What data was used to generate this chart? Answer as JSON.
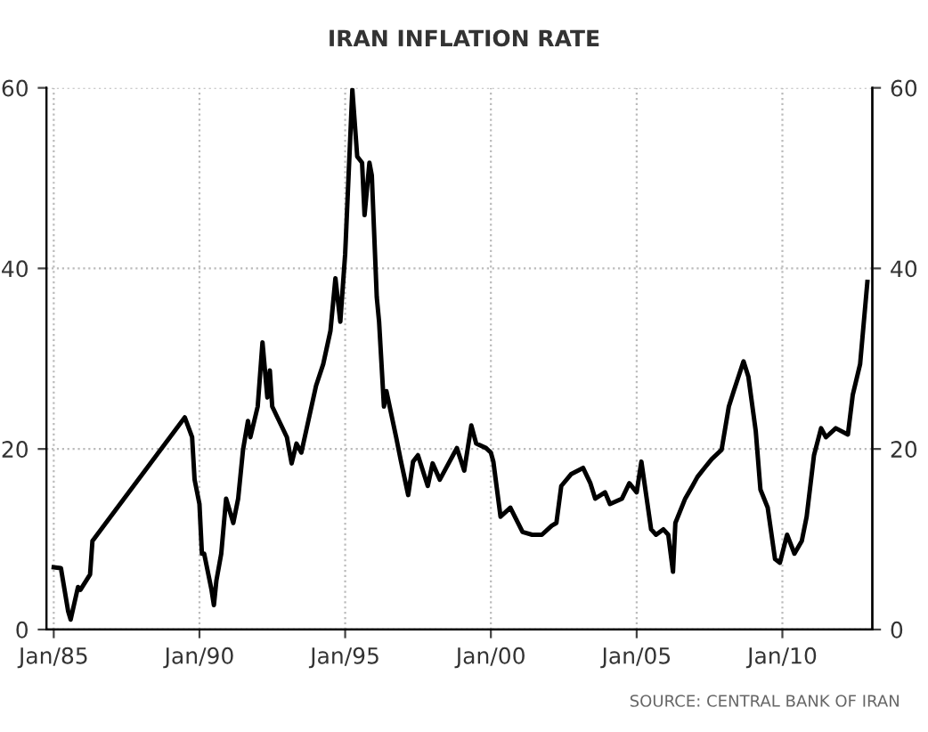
{
  "chart_data": {
    "type": "line",
    "title": "IRAN INFLATION RATE",
    "annotations": [
      "SOURCE: CENTRAL BANK OF IRAN"
    ],
    "x": [
      "1985-01",
      "1985-04",
      "1985-07",
      "1985-08",
      "1985-11",
      "1985-12",
      "1986-04",
      "1986-05",
      "1989-07",
      "1989-10",
      "1989-11",
      "1990-01",
      "1990-02",
      "1990-03",
      "1990-06",
      "1990-07",
      "1990-08",
      "1990-10",
      "1990-12",
      "1991-03",
      "1991-05",
      "1991-07",
      "1991-09",
      "1991-10",
      "1992-01",
      "1992-03",
      "1992-05",
      "1992-06",
      "1992-07",
      "1993-01",
      "1993-03",
      "1993-05",
      "1993-07",
      "1993-10",
      "1994-01",
      "1994-04",
      "1994-07",
      "1994-09",
      "1994-11",
      "1995-01",
      "1995-04",
      "1995-06",
      "1995-08",
      "1995-09",
      "1995-11",
      "1995-12",
      "1996-02",
      "1996-03",
      "1996-05",
      "1996-06",
      "1996-10",
      "1996-12",
      "1997-03",
      "1997-05",
      "1997-07",
      "1997-11",
      "1998-01",
      "1998-04",
      "1998-08",
      "1998-11",
      "1999-02",
      "1999-05",
      "1999-07",
      "1999-11",
      "2000-01",
      "2000-02",
      "2000-05",
      "2000-09",
      "2001-02",
      "2001-06",
      "2001-10",
      "2002-02",
      "2002-04",
      "2002-06",
      "2002-10",
      "2003-03",
      "2003-06",
      "2003-08",
      "2003-12",
      "2004-02",
      "2004-07",
      "2004-10",
      "2005-01",
      "2005-03",
      "2005-07",
      "2005-09",
      "2005-12",
      "2006-02",
      "2006-04",
      "2006-05",
      "2006-09",
      "2006-12",
      "2007-02",
      "2007-05",
      "2007-08",
      "2007-12",
      "2008-03",
      "2008-05",
      "2008-09",
      "2008-11",
      "2009-02",
      "2009-04",
      "2009-07",
      "2009-10",
      "2009-12",
      "2010-03",
      "2010-06",
      "2010-09",
      "2010-11",
      "2011-02",
      "2011-05",
      "2011-07",
      "2011-11",
      "2012-04",
      "2012-06",
      "2012-09",
      "2012-12"
    ],
    "series": [
      {
        "color": "#000000",
        "values": [
          6.9,
          6.8,
          2.0,
          1.1,
          4.7,
          4.4,
          6.1,
          9.8,
          23.5,
          21.3,
          16.6,
          13.9,
          8.4,
          8.4,
          4.4,
          2.7,
          5.4,
          8.4,
          14.5,
          11.8,
          14.5,
          19.9,
          23.1,
          21.3,
          24.7,
          31.8,
          25.7,
          28.7,
          24.7,
          21.3,
          18.4,
          20.6,
          19.6,
          23.3,
          27.0,
          29.4,
          33.1,
          38.9,
          34.1,
          41.6,
          59.8,
          52.4,
          51.7,
          45.9,
          51.7,
          50.3,
          36.8,
          34.1,
          24.7,
          26.4,
          21.3,
          18.6,
          14.9,
          18.6,
          19.3,
          15.9,
          18.4,
          16.6,
          18.6,
          20.1,
          17.6,
          22.6,
          20.6,
          20.1,
          19.6,
          18.6,
          12.5,
          13.5,
          10.8,
          10.5,
          10.5,
          11.5,
          11.8,
          15.9,
          17.2,
          17.9,
          16.2,
          14.5,
          15.2,
          13.9,
          14.5,
          16.2,
          15.2,
          18.6,
          11.1,
          10.5,
          11.1,
          10.5,
          6.4,
          11.8,
          14.5,
          15.9,
          16.9,
          17.9,
          18.9,
          19.9,
          24.7,
          26.4,
          29.7,
          28.0,
          22.0,
          15.5,
          13.5,
          7.8,
          7.4,
          10.5,
          8.4,
          9.8,
          12.5,
          19.3,
          22.3,
          21.3,
          22.3,
          21.6,
          26.0,
          29.4,
          38.5
        ]
      }
    ],
    "xlim": [
      "1984-10",
      "2013-02"
    ],
    "xticks": [
      {
        "value": "1985-01",
        "label": "Jan/85"
      },
      {
        "value": "1990-01",
        "label": "Jan/90"
      },
      {
        "value": "1995-01",
        "label": "Jan/95"
      },
      {
        "value": "2000-01",
        "label": "Jan/00"
      },
      {
        "value": "2005-01",
        "label": "Jan/05"
      },
      {
        "value": "2010-01",
        "label": "Jan/10"
      }
    ],
    "ylim": [
      0,
      60
    ],
    "yticks": [
      0,
      20,
      40,
      60
    ],
    "y2lim": [
      0,
      60
    ],
    "y2ticks": [
      0,
      20,
      40,
      60
    ],
    "grid": true,
    "line_style": "solid",
    "marker": "none"
  }
}
